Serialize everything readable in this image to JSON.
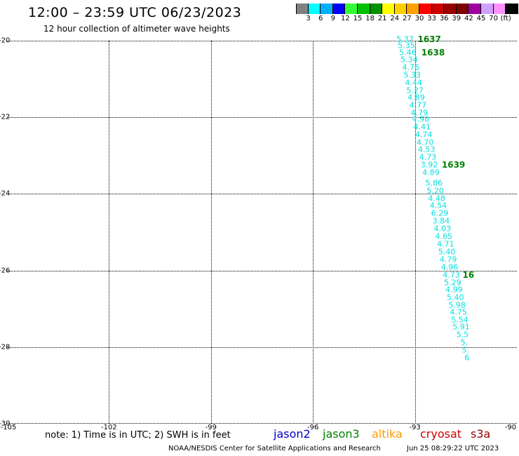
{
  "header": {
    "title": "12:00 – 23:59 UTC 06/23/2023",
    "subtitle": "12 hour collection of altimeter wave heights"
  },
  "colorbar": {
    "colors": [
      "#808080",
      "#00ffff",
      "#00b0ff",
      "#0000ff",
      "#33ff33",
      "#00c000",
      "#009000",
      "#ffff00",
      "#ffd000",
      "#ffa000",
      "#ff0000",
      "#cc0000",
      "#990000",
      "#800000",
      "#a000a0",
      "#d0a0ff",
      "#ff90ff",
      "#000000"
    ],
    "labels": [
      "3",
      "6",
      "9",
      "12",
      "15",
      "18",
      "21",
      "24",
      "27",
      "30",
      "33",
      "36",
      "39",
      "42",
      "45",
      "70",
      "(ft)"
    ]
  },
  "axes": {
    "y_ticks": [
      "-20",
      "-22",
      "-24",
      "-26",
      "-28",
      "-30"
    ],
    "x_ticks": [
      "-105",
      "-102",
      "-99",
      "-96",
      "-93",
      "-90"
    ],
    "y_values": [
      -20,
      -22,
      -24,
      -26,
      -28,
      -30
    ],
    "x_values": [
      -105,
      -102,
      -99,
      -96,
      -93,
      -90
    ]
  },
  "track": {
    "color": "#00e0e0",
    "label_color": "#008000",
    "points": [
      {
        "lat": -19.96,
        "lon": -93.29,
        "swh": "5.37"
      },
      {
        "lat": -20.13,
        "lon": -93.25,
        "swh": "5.35"
      },
      {
        "lat": -20.31,
        "lon": -93.21,
        "swh": "5.46"
      },
      {
        "lat": -20.5,
        "lon": -93.17,
        "swh": "5.34"
      },
      {
        "lat": -20.7,
        "lon": -93.12,
        "swh": "4.76"
      },
      {
        "lat": -20.9,
        "lon": -93.08,
        "swh": "5.33"
      },
      {
        "lat": -21.1,
        "lon": -93.04,
        "swh": "4.44"
      },
      {
        "lat": -21.3,
        "lon": -93.0,
        "swh": "5.27"
      },
      {
        "lat": -21.48,
        "lon": -92.96,
        "swh": "4.89"
      },
      {
        "lat": -21.68,
        "lon": -92.91,
        "swh": "4.77"
      },
      {
        "lat": -21.88,
        "lon": -92.87,
        "swh": "4.79"
      },
      {
        "lat": -22.06,
        "lon": -92.83,
        "swh": "4.98"
      },
      {
        "lat": -22.26,
        "lon": -92.79,
        "swh": "4.41"
      },
      {
        "lat": -22.46,
        "lon": -92.74,
        "swh": "4.74"
      },
      {
        "lat": -22.66,
        "lon": -92.7,
        "swh": "4.70"
      },
      {
        "lat": -22.84,
        "lon": -92.66,
        "swh": "4.53"
      },
      {
        "lat": -23.04,
        "lon": -92.62,
        "swh": "4.73"
      },
      {
        "lat": -23.24,
        "lon": -92.58,
        "swh": "3.92"
      },
      {
        "lat": -23.44,
        "lon": -92.53,
        "swh": "4.89"
      },
      {
        "lat": -23.72,
        "lon": -92.44,
        "swh": "5.86"
      },
      {
        "lat": -23.92,
        "lon": -92.4,
        "swh": "5.20"
      },
      {
        "lat": -24.12,
        "lon": -92.36,
        "swh": "4.48"
      },
      {
        "lat": -24.31,
        "lon": -92.31,
        "swh": "4.54"
      },
      {
        "lat": -24.51,
        "lon": -92.27,
        "swh": "6.29"
      },
      {
        "lat": -24.71,
        "lon": -92.23,
        "swh": "3.84"
      },
      {
        "lat": -24.91,
        "lon": -92.19,
        "swh": "4.03"
      },
      {
        "lat": -25.11,
        "lon": -92.15,
        "swh": "4.65"
      },
      {
        "lat": -25.31,
        "lon": -92.1,
        "swh": "4.71"
      },
      {
        "lat": -25.51,
        "lon": -92.06,
        "swh": "5.40"
      },
      {
        "lat": -25.71,
        "lon": -92.02,
        "swh": "4.79"
      },
      {
        "lat": -25.91,
        "lon": -91.98,
        "swh": "4.96"
      },
      {
        "lat": -26.11,
        "lon": -91.93,
        "swh": "4.73"
      },
      {
        "lat": -26.31,
        "lon": -91.89,
        "swh": "5.29"
      },
      {
        "lat": -26.51,
        "lon": -91.85,
        "swh": "4.99"
      },
      {
        "lat": -26.71,
        "lon": -91.81,
        "swh": "5.40"
      },
      {
        "lat": -26.9,
        "lon": -91.76,
        "swh": "5.98"
      },
      {
        "lat": -27.09,
        "lon": -91.72,
        "swh": "4.75"
      },
      {
        "lat": -27.29,
        "lon": -91.68,
        "swh": "5.54"
      },
      {
        "lat": -27.48,
        "lon": -91.64,
        "swh": "5.91"
      },
      {
        "lat": -27.68,
        "lon": -91.6,
        "swh": "5.5"
      },
      {
        "lat": -27.88,
        "lon": -91.55,
        "swh": "5."
      },
      {
        "lat": -28.07,
        "lon": -91.51,
        "swh": "5."
      },
      {
        "lat": -28.27,
        "lon": -91.47,
        "swh": "6"
      }
    ],
    "cycle_labels": [
      {
        "lat": -19.96,
        "lon": -92.92,
        "text": "1637"
      },
      {
        "lat": -20.31,
        "lon": -92.81,
        "text": "1638"
      },
      {
        "lat": -23.24,
        "lon": -92.21,
        "text": "1639"
      },
      {
        "lat": -26.11,
        "lon": -91.6,
        "text": "16"
      }
    ]
  },
  "note": "note: 1) Time is in UTC; 2) SWH is in feet",
  "legend": [
    {
      "label": "jason2",
      "color": "#0000cc"
    },
    {
      "label": "jason3",
      "color": "#008000"
    },
    {
      "label": "altika",
      "color": "#ff9900"
    },
    {
      "label": "cryosat",
      "color": "#cc0000"
    },
    {
      "label": "s3a",
      "color": "#990000"
    }
  ],
  "footer": {
    "credit": "NOAA/NESDIS Center for Satellite Applications and Research",
    "timestamp": "Jun 25 08:29:22 UTC 2023"
  }
}
